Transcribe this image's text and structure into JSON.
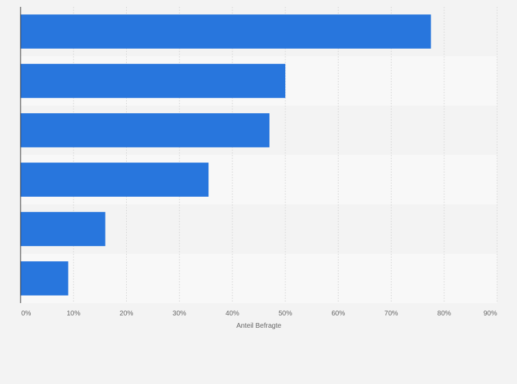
{
  "chart_data": {
    "type": "bar",
    "orientation": "horizontal",
    "title": "",
    "xlabel": "Anteil Befragte",
    "ylabel": "",
    "categories": [
      "",
      "",
      "",
      "",
      "",
      ""
    ],
    "series": [
      {
        "values": [
          77.5,
          50,
          47,
          35.5,
          16,
          9
        ]
      }
    ],
    "xlim": [
      0,
      90
    ],
    "x_ticks": [
      0,
      10,
      20,
      30,
      40,
      50,
      60,
      70,
      80,
      90
    ],
    "x_tick_labels": [
      "0%",
      "10%",
      "20%",
      "30%",
      "40%",
      "50%",
      "60%",
      "70%",
      "80%",
      "90%"
    ],
    "grid": true,
    "legend": "none",
    "colors": {
      "bar": "#2876dd",
      "band_even": "#f3f3f3",
      "band_odd": "#f8f8f8",
      "grid": "#d9d9d9",
      "axis": "#333333",
      "background": "#f3f3f3",
      "text": "#666666"
    }
  }
}
